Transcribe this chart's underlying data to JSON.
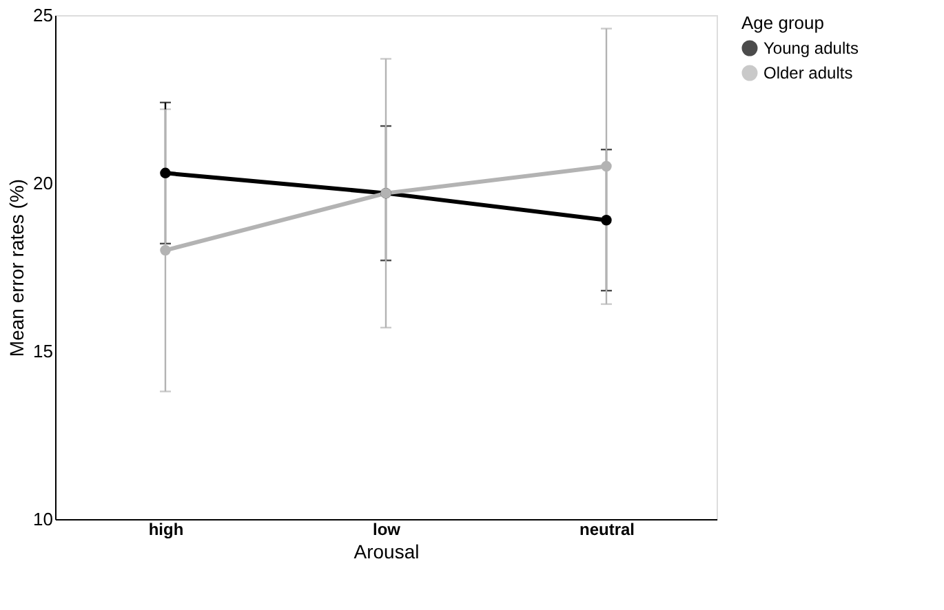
{
  "chart_data": {
    "type": "line",
    "xlabel": "Arousal",
    "ylabel": "Mean error rates (%)",
    "legend_title": "Age group",
    "categories": [
      "high",
      "low",
      "neutral"
    ],
    "series": [
      {
        "name": "Young adults",
        "color": "#000000",
        "values": [
          20.3,
          19.7,
          18.9
        ],
        "errors": [
          [
            18.2,
            22.4
          ],
          [
            17.7,
            21.7
          ],
          [
            16.8,
            21.0
          ]
        ]
      },
      {
        "name": "Older adults",
        "color": "#b3b3b3",
        "values": [
          18.0,
          19.7,
          20.5
        ],
        "errors": [
          [
            13.8,
            22.2
          ],
          [
            15.7,
            23.7
          ],
          [
            16.4,
            24.6
          ]
        ]
      }
    ],
    "ylim": [
      10,
      25
    ],
    "yticks": [
      10,
      15,
      20,
      25
    ],
    "grid": false,
    "legend": "right",
    "marker": "circle",
    "line_style": "solid"
  }
}
